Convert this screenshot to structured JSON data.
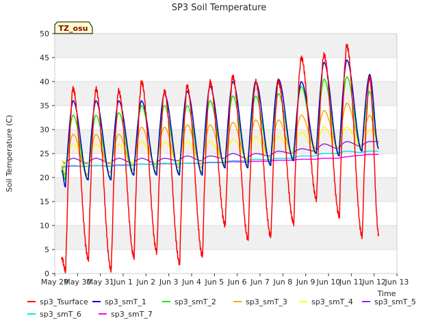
{
  "chart_data": {
    "type": "line",
    "title": "SP3 Soil Temperature",
    "xlabel": "Time",
    "ylabel": "Soil Temperature (C)",
    "badge": "TZ_osu",
    "ylim": [
      0,
      50
    ],
    "yticks": [
      0,
      5,
      10,
      15,
      20,
      25,
      30,
      35,
      40,
      45,
      50
    ],
    "xlim": [
      0,
      15
    ],
    "x_tick_labels": [
      "May 29",
      "May 30",
      "May 31",
      "Jun 1",
      "Jun 2",
      "Jun 3",
      "Jun 4",
      "Jun 5",
      "Jun 6",
      "Jun 7",
      "Jun 8",
      "Jun 9",
      "Jun 10",
      "Jun 11",
      "Jun 12",
      "Jun 13"
    ],
    "data_range_days": [
      0.3,
      14.2
    ],
    "daily_peak_day_offsets": [
      0.8,
      1.8,
      2.8,
      3.8,
      4.8,
      5.8,
      6.8,
      7.8,
      8.8,
      9.8,
      10.8,
      11.8,
      12.8,
      13.8
    ],
    "series": [
      {
        "name": "sp3_Tsurface",
        "color": "#ff0000",
        "daily_max": [
          38.5,
          38.5,
          38,
          40,
          38,
          39,
          40,
          41,
          40,
          40,
          45,
          45.5,
          47.5,
          41
        ],
        "daily_min": [
          0.5,
          3,
          0.7,
          3.5,
          4.5,
          2.2,
          3.7,
          10,
          7.2,
          7.7,
          10.5,
          15.5,
          12,
          7.7
        ],
        "start": 3.3,
        "end": 8.2
      },
      {
        "name": "sp3_smT_1",
        "color": "#0000cc",
        "daily_max": [
          36,
          36,
          36,
          36,
          37.5,
          38,
          39,
          40,
          40,
          40.5,
          40,
          44,
          44.5,
          41.5
        ],
        "daily_min": [
          18,
          19.5,
          19.5,
          20.5,
          20.5,
          20.5,
          20.5,
          22,
          22,
          22.5,
          23.5,
          25,
          24.5,
          25.5
        ],
        "start": 21.5,
        "end": 26
      },
      {
        "name": "sp3_smT_2",
        "color": "#00ee00",
        "daily_max": [
          33,
          33,
          33.5,
          35,
          35,
          35,
          36,
          37,
          37,
          37.5,
          39,
          40.5,
          41,
          38
        ],
        "daily_min": [
          19.5,
          19.5,
          20,
          20.5,
          21,
          21,
          21,
          22.5,
          22.5,
          23,
          24,
          25,
          25,
          25.5
        ],
        "start": 22,
        "end": 26
      },
      {
        "name": "sp3_smT_3",
        "color": "#ffa500",
        "daily_max": [
          29,
          29,
          29,
          30.5,
          30.5,
          31,
          31,
          31.5,
          32,
          32,
          33,
          34,
          35.5,
          33
        ],
        "daily_min": [
          20.5,
          20.5,
          21,
          21.5,
          22,
          22,
          22,
          23,
          23.5,
          23.5,
          25,
          26,
          26,
          26.5
        ],
        "start": 22.5,
        "end": 27
      },
      {
        "name": "sp3_smT_4",
        "color": "#ffff00",
        "daily_max": [
          27,
          27,
          27,
          27.5,
          27.5,
          27.5,
          27.5,
          28,
          28.5,
          28.5,
          29.5,
          30.5,
          30.5,
          30
        ],
        "daily_min": [
          22.5,
          22.5,
          22.5,
          23,
          23,
          23,
          23,
          23.5,
          24,
          24,
          25,
          25.5,
          26,
          26.5
        ],
        "start": 23.5,
        "end": 28
      },
      {
        "name": "sp3_smT_5",
        "color": "#8a2be2",
        "daily_max": [
          24,
          24,
          24,
          24,
          24,
          24.5,
          24.5,
          25,
          25,
          25.5,
          26,
          27,
          27.5,
          27.5
        ],
        "daily_min": [
          23,
          23,
          23,
          23,
          23,
          23.5,
          23.5,
          24,
          24,
          24.5,
          25,
          25.5,
          26,
          26.5
        ],
        "start": 23.5,
        "end": 27.5
      },
      {
        "name": "sp3_smT_6",
        "color": "#00e5ee",
        "daily_max": [
          22.5,
          22.5,
          22.5,
          22.8,
          23,
          23,
          23.2,
          23.5,
          23.8,
          24,
          24.5,
          25,
          25.5,
          25.5
        ],
        "daily_min": [
          22.3,
          22.3,
          22.3,
          22.5,
          22.7,
          22.8,
          23,
          23.2,
          23.5,
          23.7,
          24,
          24.5,
          25,
          25.2
        ],
        "start": 22.3,
        "end": 25.5
      },
      {
        "name": "sp3_smT_7",
        "color": "#ff00ff",
        "daily_max": [
          22.4,
          22.5,
          22.6,
          22.8,
          22.9,
          23,
          23.1,
          23.3,
          23.4,
          23.6,
          23.8,
          24,
          24.3,
          24.8
        ],
        "daily_min": [
          22.2,
          22.3,
          22.4,
          22.6,
          22.7,
          22.8,
          22.9,
          23.1,
          23.2,
          23.4,
          23.6,
          23.8,
          24,
          24.6
        ],
        "start": 22.1,
        "end": 24.8
      }
    ]
  }
}
